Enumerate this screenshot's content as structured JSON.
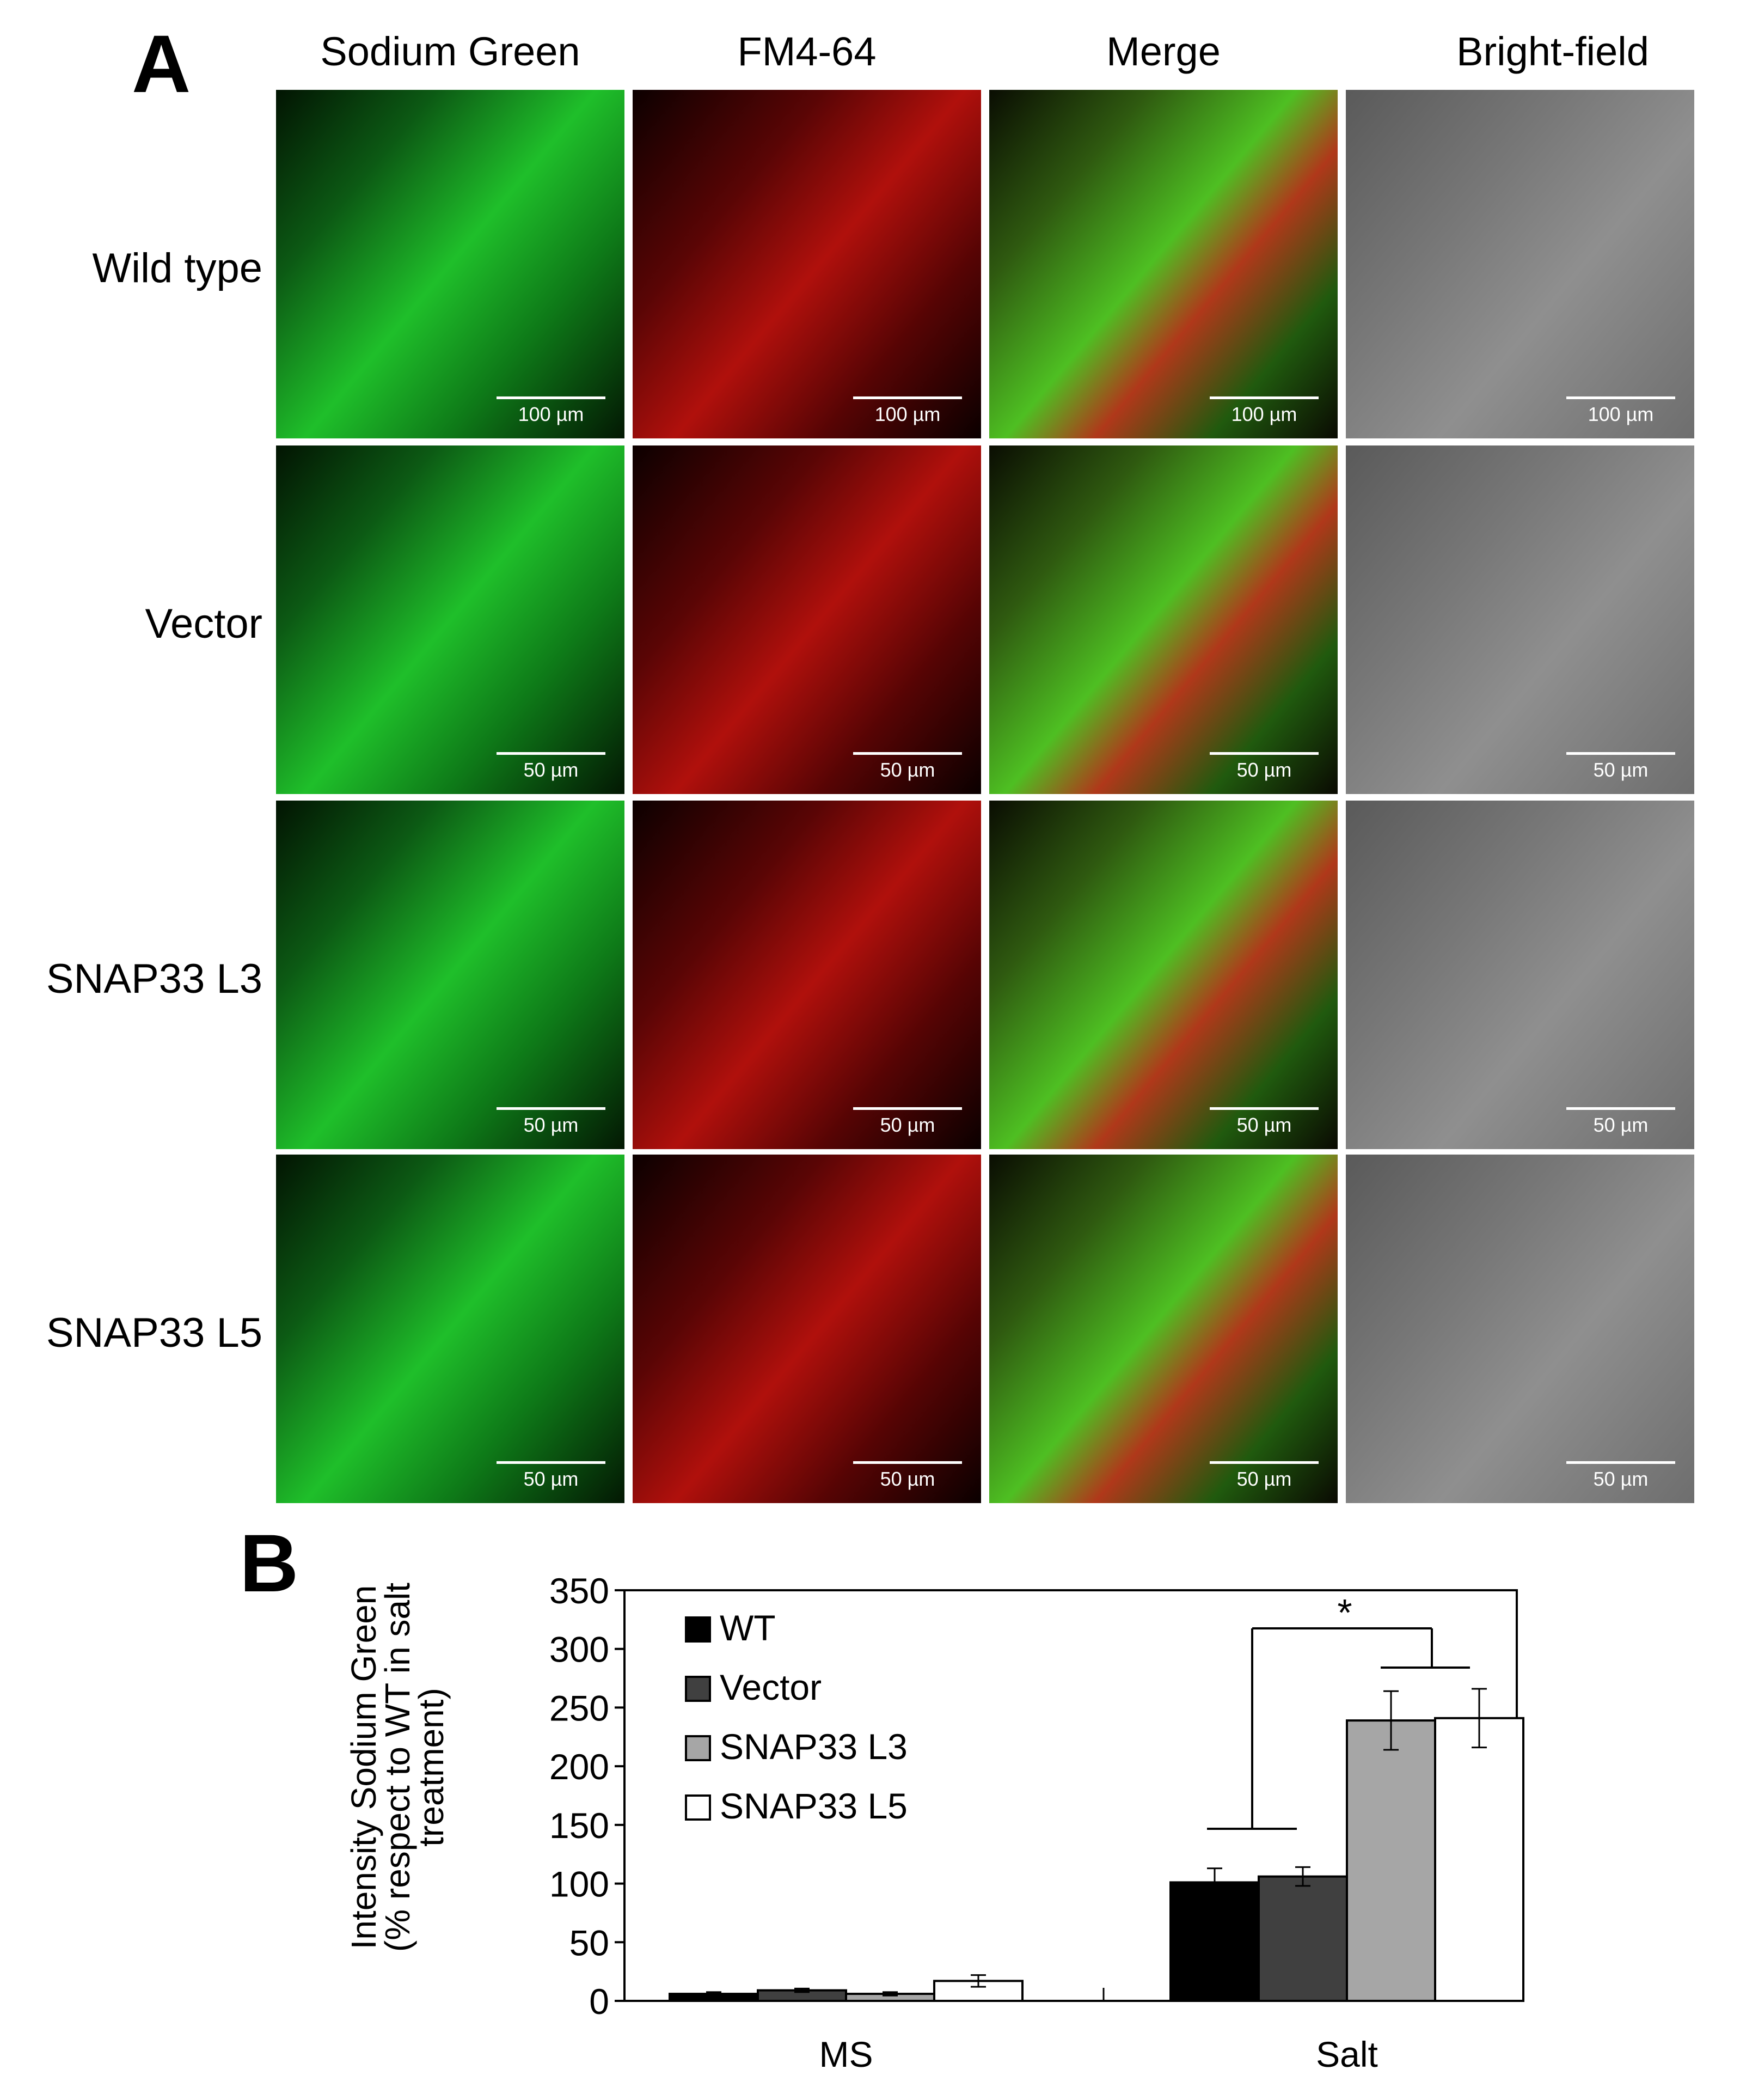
{
  "panels": {
    "a_label": "A",
    "b_label": "B"
  },
  "columns": [
    {
      "label": "Sodium Green",
      "kind": "green"
    },
    {
      "label": "FM4-64",
      "kind": "red"
    },
    {
      "label": "Merge",
      "kind": "merge"
    },
    {
      "label": "Bright-field",
      "kind": "bright"
    }
  ],
  "rows": [
    {
      "label": "Wild type",
      "scale": "100 µm"
    },
    {
      "label": "Vector",
      "scale": "50 µm"
    },
    {
      "label": "SNAP33 L3",
      "scale": "50 µm"
    },
    {
      "label": "SNAP33 L5",
      "scale": "50 µm"
    }
  ],
  "chart_data": {
    "type": "bar",
    "ylabel": [
      "Intensity Sodium Green",
      "(% respect to WT in salt",
      "treatment)"
    ],
    "xlabel": "",
    "categories": [
      "MS",
      "Salt"
    ],
    "ylim": [
      0,
      350
    ],
    "yticks": [
      0,
      50,
      100,
      150,
      200,
      250,
      300,
      350
    ],
    "series": [
      {
        "name": "WT",
        "color": "#000000",
        "values": [
          6,
          101
        ],
        "errors": [
          1.5,
          12
        ]
      },
      {
        "name": "Vector",
        "color": "#404040",
        "values": [
          9,
          106
        ],
        "errors": [
          1.5,
          8
        ]
      },
      {
        "name": "SNAP33 L3",
        "color": "#a6a6a6",
        "values": [
          6,
          239
        ],
        "errors": [
          1.5,
          25
        ]
      },
      {
        "name": "SNAP33 L5",
        "color": "#ffffff",
        "values": [
          17,
          241
        ],
        "errors": [
          5,
          25
        ]
      }
    ],
    "legend_position": "top-left",
    "significance": "*"
  }
}
